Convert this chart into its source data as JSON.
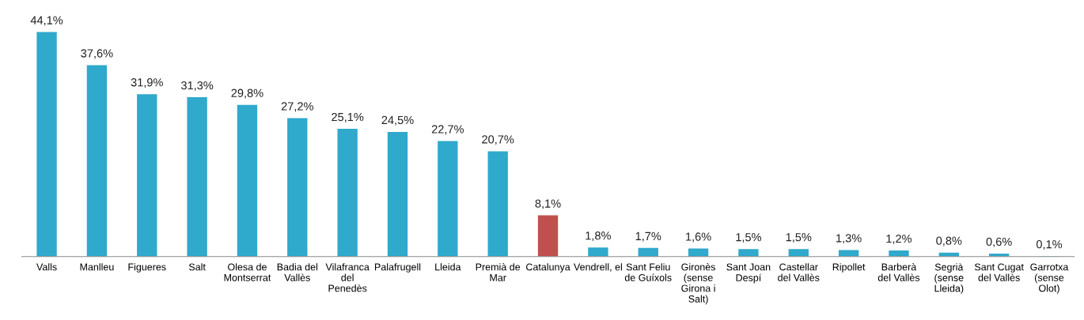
{
  "chart_data": {
    "type": "bar",
    "categories": [
      "Valls",
      "Manlleu",
      "Figueres",
      "Salt",
      "Olesa de\nMontserrat",
      "Badia del\nVallès",
      "Vilafranca\ndel\nPenedès",
      "Palafrugell",
      "Lleida",
      "Premià de\nMar",
      "Catalunya",
      "Vendrell, el",
      "Sant Feliu\nde Guíxols",
      "Gironès\n(sense\nGirona i\nSalt)",
      "Sant Joan\nDespí",
      "Castellar\ndel Vallès",
      "Ripollet",
      "Barberà\ndel Vallès",
      "Segrià\n(sense\nLleida)",
      "Sant Cugat\ndel Vallès",
      "Garrotxa\n(sense\nOlot)"
    ],
    "values": [
      44.1,
      37.6,
      31.9,
      31.3,
      29.8,
      27.2,
      25.1,
      24.5,
      22.7,
      20.7,
      8.1,
      1.8,
      1.7,
      1.6,
      1.5,
      1.5,
      1.3,
      1.2,
      0.8,
      0.6,
      0.1
    ],
    "value_labels": [
      "44,1%",
      "37,6%",
      "31,9%",
      "31,3%",
      "29,8%",
      "27,2%",
      "25,1%",
      "24,5%",
      "22,7%",
      "20,7%",
      "8,1%",
      "1,8%",
      "1,7%",
      "1,6%",
      "1,5%",
      "1,5%",
      "1,3%",
      "1,2%",
      "0,8%",
      "0,6%",
      "0,1%"
    ],
    "colors": [
      "#2fa9cc",
      "#2fa9cc",
      "#2fa9cc",
      "#2fa9cc",
      "#2fa9cc",
      "#2fa9cc",
      "#2fa9cc",
      "#2fa9cc",
      "#2fa9cc",
      "#2fa9cc",
      "#c0504d",
      "#2fa9cc",
      "#2fa9cc",
      "#2fa9cc",
      "#2fa9cc",
      "#2fa9cc",
      "#2fa9cc",
      "#2fa9cc",
      "#2fa9cc",
      "#2fa9cc",
      "#2fa9cc"
    ],
    "tick_labels": "x",
    "grid": false,
    "legend": false
  }
}
